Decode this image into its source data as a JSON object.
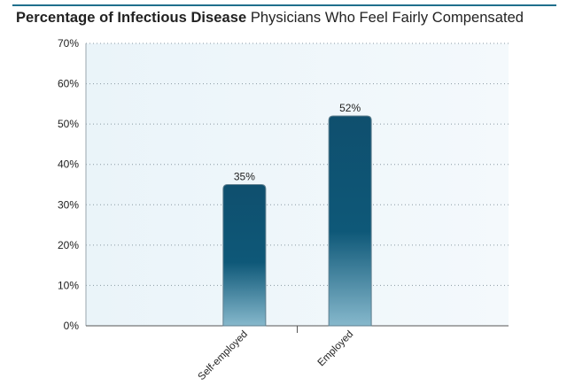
{
  "header": {
    "title_bold": "Percentage of Infectious Disease",
    "title_regular": "Physicians Who Feel Fairly Compensated"
  },
  "colors": {
    "accent_rule": "#1f6f8c",
    "bar_top": "#0f4f6e",
    "bar_mid": "#0e5878",
    "bar_bottom": "#86b8cc",
    "plot_bg_left": "#eaf4f9",
    "plot_bg_right": "#f4f9fc"
  },
  "chart_data": {
    "type": "bar",
    "categories": [
      "Self-employed",
      "Employed"
    ],
    "values": [
      35,
      52
    ],
    "value_labels": [
      "35%",
      "52%"
    ],
    "ylim": [
      0,
      70
    ],
    "yticks": [
      0,
      10,
      20,
      30,
      40,
      50,
      60,
      70
    ],
    "ytick_labels": [
      "0%",
      "10%",
      "20%",
      "30%",
      "40%",
      "50%",
      "60%",
      "70%"
    ],
    "grid": true,
    "legend": "none",
    "title": "Percentage of Infectious Disease Physicians Who Feel Fairly Compensated",
    "xlabel": "",
    "ylabel": ""
  }
}
